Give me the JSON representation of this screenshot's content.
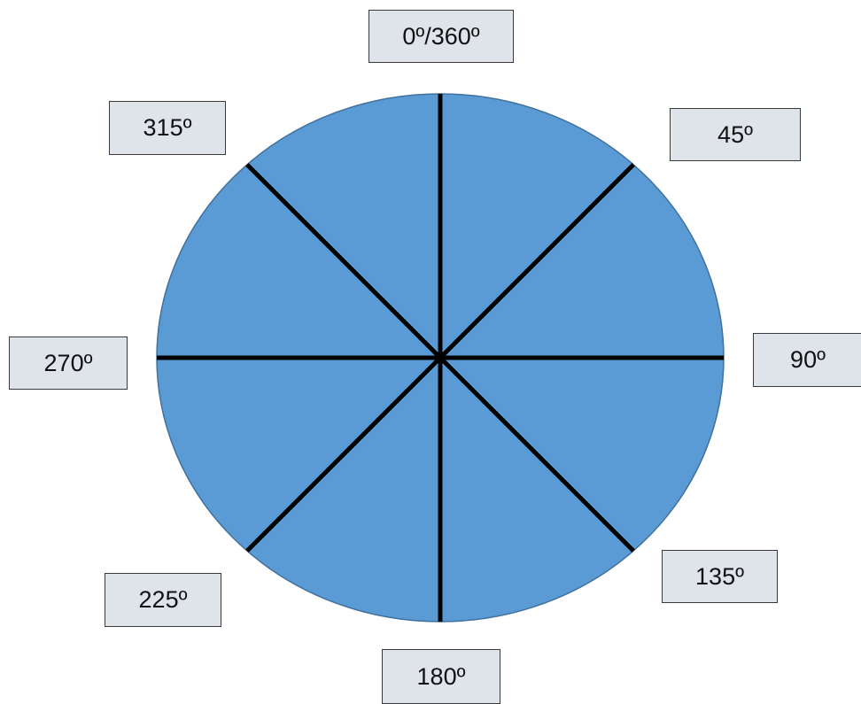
{
  "diagram": {
    "colors": {
      "disc_fill": "#5b9bd5",
      "disc_stroke": "#41719c",
      "spoke": "#000000",
      "label_fill": "#dfe3ea",
      "label_border": "#3a3a3a"
    },
    "spoke_angles_deg": [
      0,
      45,
      90,
      135
    ],
    "labels": {
      "deg_0_360": "0º/360º",
      "deg_45": "45º",
      "deg_90": "90º",
      "deg_135": "135º",
      "deg_180": "180º",
      "deg_225": "225º",
      "deg_270": "270º",
      "deg_315": "315º"
    }
  }
}
